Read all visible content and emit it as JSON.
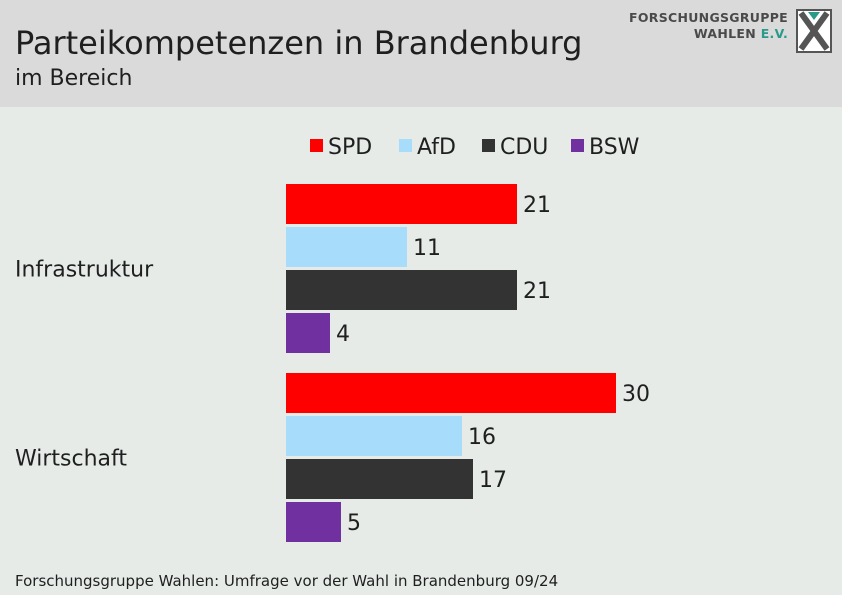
{
  "header": {
    "title": "Parteikompetenzen in Brandenburg",
    "subtitle": "im Bereich",
    "logo_line1": "FORSCHUNGSGRUPPE",
    "logo_line2": "WAHLEN",
    "logo_line2_suffix": "E.V."
  },
  "footer": {
    "source": "Forschungsgruppe Wahlen: Umfrage vor der Wahl in Brandenburg 09/24"
  },
  "chart_data": {
    "type": "bar",
    "orientation": "horizontal",
    "title": "Parteikompetenzen in Brandenburg",
    "subtitle": "im Bereich",
    "categories": [
      "Infrastruktur",
      "Wirtschaft"
    ],
    "series": [
      {
        "name": "SPD",
        "color": "#ff0000",
        "values": [
          21,
          30
        ]
      },
      {
        "name": "AfD",
        "color": "#a7dcfa",
        "values": [
          11,
          16
        ]
      },
      {
        "name": "CDU",
        "color": "#333333",
        "values": [
          21,
          17
        ]
      },
      {
        "name": "BSW",
        "color": "#7030a0",
        "values": [
          4,
          5
        ]
      }
    ],
    "legend_position": "top",
    "grid": false,
    "axes_visible": false,
    "data_labels": true,
    "xlim": [
      0,
      30
    ]
  }
}
